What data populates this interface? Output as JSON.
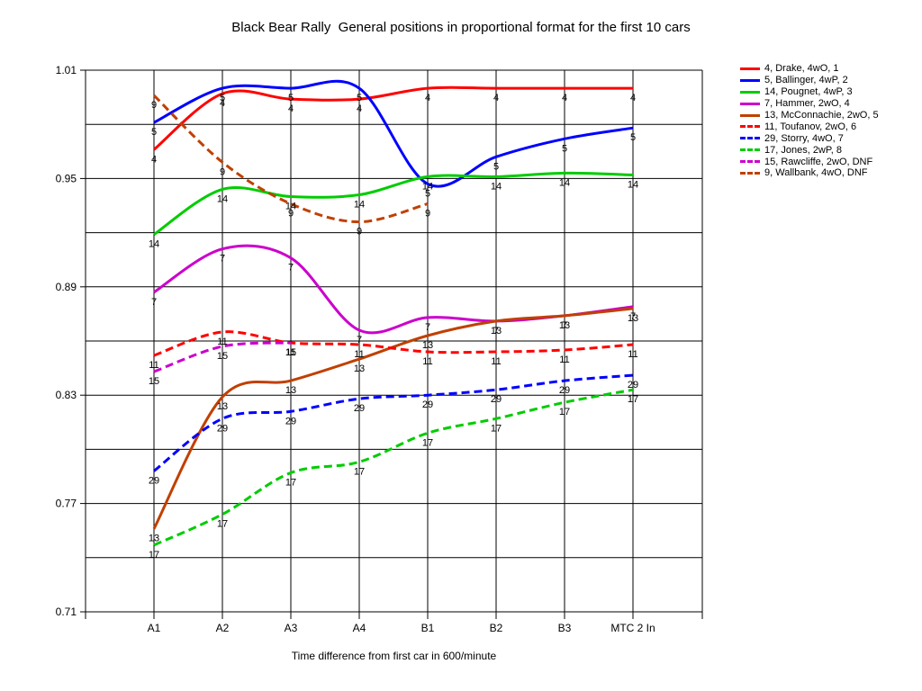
{
  "chart_data": {
    "type": "line",
    "title": "Black Bear Rally  General positions in proportional format for the first 10 cars",
    "xlabel": "Time difference from first car in 600/minute",
    "ylabel": "",
    "categories": [
      "A1",
      "A2",
      "A3",
      "A4",
      "B1",
      "B2",
      "B3",
      "MTC 2 In"
    ],
    "ylim": [
      0.71,
      1.01
    ],
    "yticks": [
      "0.71",
      "0.77",
      "0.83",
      "0.89",
      "0.95",
      "1.01"
    ],
    "grid": "horizontal",
    "legend_position": "right",
    "series": [
      {
        "name": "4, Drake, 4wO, 1",
        "label": "4",
        "color": "#ff0000",
        "dashed": false,
        "values": [
          0.966,
          0.997,
          0.994,
          0.994,
          1.0,
          1.0,
          1.0,
          1.0
        ]
      },
      {
        "name": "5, Ballinger, 4wP, 2",
        "label": "5",
        "color": "#0000ff",
        "dashed": false,
        "values": [
          0.981,
          1.0,
          1.0,
          1.0,
          0.947,
          0.962,
          0.972,
          0.978
        ]
      },
      {
        "name": "14, Pougnet, 4wP, 3",
        "label": "14",
        "color": "#00cc00",
        "dashed": false,
        "values": [
          0.919,
          0.944,
          0.94,
          0.941,
          0.951,
          0.951,
          0.953,
          0.952
        ]
      },
      {
        "name": " 7, Hammer, 2wO, 4",
        "label": "7",
        "color": "#cc00cc",
        "dashed": false,
        "values": [
          0.887,
          0.911,
          0.906,
          0.866,
          0.873,
          0.871,
          0.874,
          0.879
        ]
      },
      {
        "name": "13, McConnachie, 2wO, 5",
        "label": "13",
        "color": "#c04000",
        "dashed": false,
        "values": [
          0.756,
          0.829,
          0.838,
          0.85,
          0.863,
          0.871,
          0.874,
          0.878
        ]
      },
      {
        "name": "11, Toufanov, 2wO, 6",
        "label": "11",
        "color": "#ff0000",
        "dashed": true,
        "values": [
          0.852,
          0.865,
          0.859,
          0.858,
          0.854,
          0.854,
          0.855,
          0.858
        ]
      },
      {
        "name": "29, Storry, 4wO, 7",
        "label": "29",
        "color": "#0000ff",
        "dashed": true,
        "values": [
          0.788,
          0.817,
          0.821,
          0.828,
          0.83,
          0.833,
          0.838,
          0.841
        ]
      },
      {
        "name": "17, Jones, 2wP, 8",
        "label": "17",
        "color": "#00cc00",
        "dashed": true,
        "values": [
          0.747,
          0.764,
          0.787,
          0.793,
          0.809,
          0.817,
          0.826,
          0.833
        ]
      },
      {
        "name": "15, Rawcliffe, 2wO, DNF",
        "label": "15",
        "color": "#cc00cc",
        "dashed": true,
        "values": [
          0.843,
          0.857,
          0.859,
          null,
          null,
          null,
          null,
          null
        ]
      },
      {
        "name": "9, Wallbank, 4wO, DNF",
        "label": "9",
        "color": "#c04000",
        "dashed": true,
        "values": [
          0.996,
          0.959,
          0.936,
          0.926,
          0.936,
          null,
          null,
          null
        ]
      }
    ]
  }
}
